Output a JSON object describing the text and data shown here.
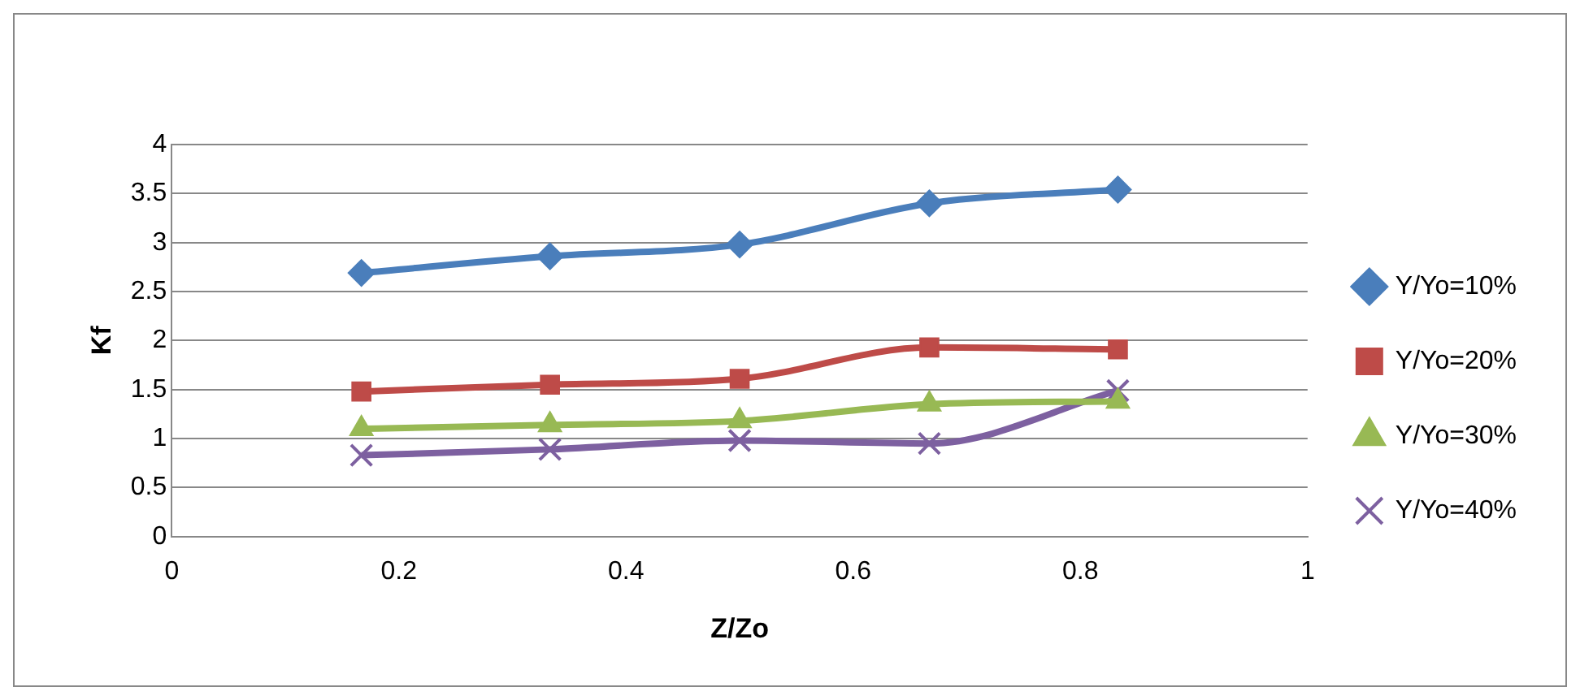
{
  "chart_data": {
    "type": "line",
    "xlabel": "Z/Zo",
    "ylabel": "Kf",
    "x": [
      0.167,
      0.333,
      0.5,
      0.667,
      0.833
    ],
    "xlim": [
      0,
      1
    ],
    "xticks": [
      0,
      0.2,
      0.4,
      0.6,
      0.8,
      1
    ],
    "ylim": [
      0,
      4
    ],
    "yticks": [
      0,
      0.5,
      1,
      1.5,
      2,
      2.5,
      3,
      3.5,
      4
    ],
    "grid": "y",
    "legend": "right",
    "series": [
      {
        "name": "Y/Yo=10%",
        "color": "#4a7ebb",
        "marker": "diamond",
        "values": [
          2.69,
          2.86,
          2.98,
          3.4,
          3.54
        ]
      },
      {
        "name": "Y/Yo=20%",
        "color": "#be4b48",
        "marker": "square",
        "values": [
          1.48,
          1.55,
          1.61,
          1.93,
          1.91
        ]
      },
      {
        "name": "Y/Yo=30%",
        "color": "#98b954",
        "marker": "triangle",
        "values": [
          1.1,
          1.14,
          1.18,
          1.35,
          1.38
        ]
      },
      {
        "name": "Y/Yo=40%",
        "color": "#7d60a0",
        "marker": "cross",
        "values": [
          0.83,
          0.89,
          0.98,
          0.95,
          1.49
        ]
      }
    ]
  }
}
